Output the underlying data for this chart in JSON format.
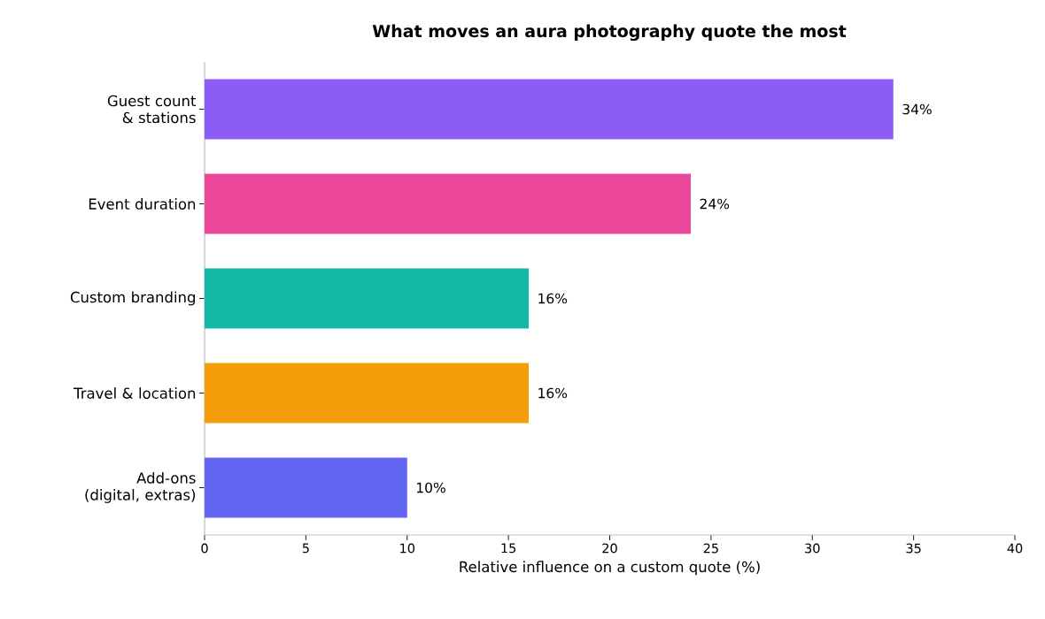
{
  "chart_data": {
    "type": "bar",
    "orientation": "horizontal",
    "title": "What moves an aura photography quote the most",
    "xlabel": "Relative influence on a custom quote (%)",
    "categories": [
      "Guest count & stations",
      "Event duration",
      "Custom branding",
      "Travel & location",
      "Add-ons (digital, extras)"
    ],
    "values": [
      34,
      24,
      16,
      16,
      10
    ],
    "value_labels": [
      "34%",
      "24%",
      "16%",
      "16%",
      "10%"
    ],
    "colors": [
      "#8b5cf6",
      "#ec4899",
      "#14b8a6",
      "#f59e0b",
      "#6366f1"
    ],
    "xlim": [
      0,
      40
    ],
    "xticks": [
      0,
      5,
      10,
      15,
      20,
      25,
      30,
      35,
      40
    ]
  }
}
